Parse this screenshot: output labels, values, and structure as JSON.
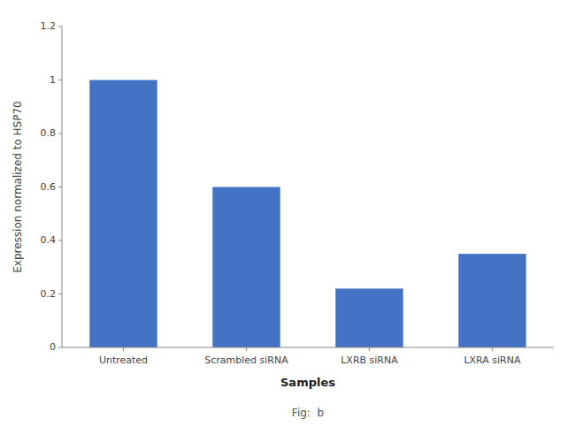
{
  "chart_data": {
    "type": "bar",
    "categories": [
      "Untreated",
      "Scrambled siRNA",
      "LXRB siRNA",
      "LXRA siRNA"
    ],
    "values": [
      1.0,
      0.6,
      0.22,
      0.35
    ],
    "color": "#4472c4",
    "xlabel": "Samples",
    "ylabel": "Expression normalized to HSP70",
    "ylim": [
      0,
      1.2
    ],
    "yticks": [
      0,
      0.2,
      0.4,
      0.6,
      0.8,
      1,
      1.2
    ],
    "grid": false,
    "annotations": [
      "Fig:  b"
    ]
  }
}
